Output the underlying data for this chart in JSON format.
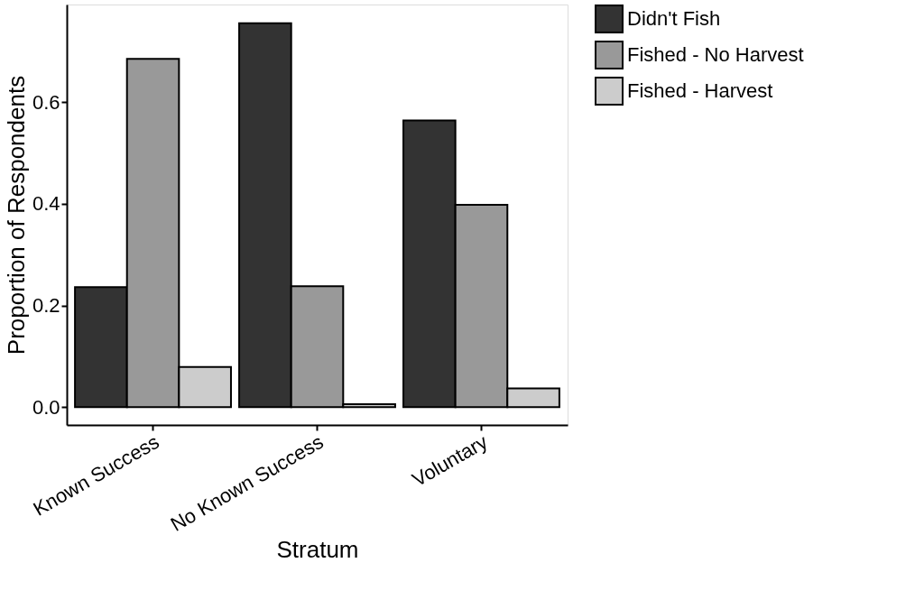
{
  "chart_data": {
    "type": "bar",
    "xlabel": "Stratum",
    "ylabel": "Proportion of Respondents",
    "categories": [
      "Known Success",
      "No Known Success",
      "Voluntary"
    ],
    "series": [
      {
        "name": "Didn't Fish",
        "color": "#333333",
        "values": [
          0.236,
          0.755,
          0.564
        ]
      },
      {
        "name": "Fished - No Harvest",
        "color": "#999999",
        "values": [
          0.685,
          0.238,
          0.398
        ]
      },
      {
        "name": "Fished - Harvest",
        "color": "#cccccc",
        "values": [
          0.079,
          0.006,
          0.037
        ]
      }
    ],
    "ylim": [
      -0.035,
      0.792
    ],
    "yticks": [
      {
        "value": 0,
        "label": "0.0"
      },
      0.2,
      0.4,
      0.6
    ],
    "grid": false,
    "legend": "right"
  }
}
